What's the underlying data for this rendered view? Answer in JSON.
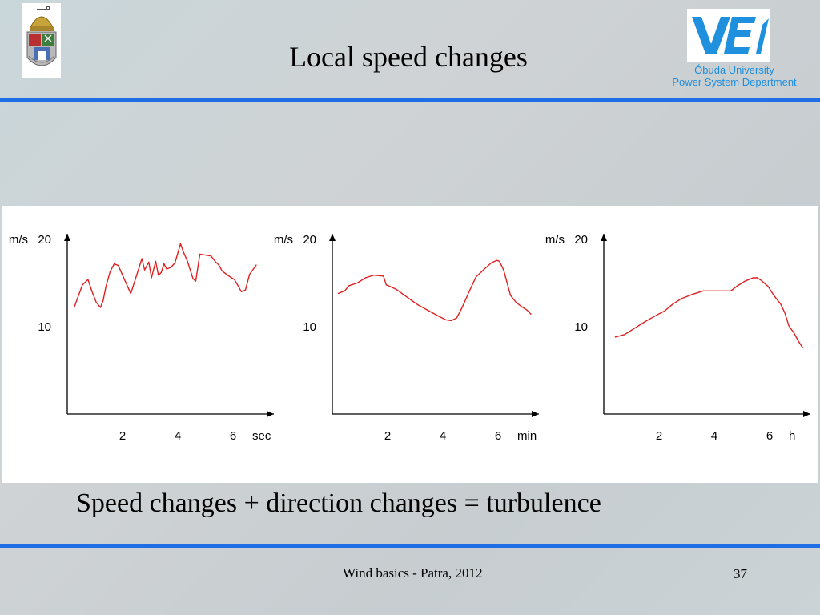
{
  "slide": {
    "title": "Local speed changes",
    "subtitle": "Speed changes + direction changes = turbulence",
    "footer": "Wind basics - Patra, 2012",
    "page_number": "37",
    "department_line1": "Óbuda University",
    "department_line2": "Power System Department",
    "accent_color": "#1f6ee6",
    "logo_left": "university-crest-icon",
    "logo_right": "vei-logo-icon"
  },
  "chart_data": [
    {
      "type": "line",
      "y_unit": "m/s",
      "x_unit": "sec",
      "x_ticks": [
        2,
        4,
        6
      ],
      "y_ticks": [
        10,
        20
      ],
      "xlim": [
        0,
        7.5
      ],
      "ylim": [
        0,
        23
      ],
      "series": [
        {
          "color": "#e02020",
          "x": [
            0.25,
            0.4,
            0.55,
            0.75,
            0.9,
            1.05,
            1.2,
            1.3,
            1.4,
            1.55,
            1.7,
            1.85,
            2.1,
            2.3,
            2.5,
            2.7,
            2.8,
            2.95,
            3.05,
            3.2,
            3.3,
            3.4,
            3.5,
            3.6,
            3.75,
            3.9,
            4.1,
            4.2,
            4.35,
            4.55,
            4.65,
            4.8,
            5.2,
            5.35,
            5.5,
            5.6,
            5.8,
            6.05,
            6.2,
            6.3,
            6.45,
            6.6,
            6.85
          ],
          "y": [
            12.2,
            13.5,
            14.8,
            15.4,
            14.0,
            12.8,
            12.2,
            13.0,
            14.6,
            16.3,
            17.2,
            17.0,
            15.2,
            13.8,
            15.8,
            17.8,
            16.5,
            17.4,
            15.6,
            17.5,
            15.9,
            16.2,
            17.2,
            16.6,
            16.8,
            17.3,
            19.5,
            18.6,
            17.5,
            15.5,
            15.2,
            18.3,
            18.1,
            17.5,
            17.0,
            16.4,
            15.9,
            15.4,
            14.6,
            14.0,
            14.2,
            16.0,
            17.1
          ]
        }
      ]
    },
    {
      "type": "line",
      "y_unit": "m/s",
      "x_unit": "min",
      "x_ticks": [
        2,
        4,
        6
      ],
      "y_ticks": [
        10,
        20
      ],
      "xlim": [
        0,
        7.5
      ],
      "ylim": [
        0,
        23
      ],
      "series": [
        {
          "color": "#e02020",
          "x": [
            0.2,
            0.45,
            0.6,
            0.9,
            1.2,
            1.5,
            1.85,
            1.95,
            2.3,
            2.7,
            3.1,
            3.5,
            3.85,
            4.1,
            4.3,
            4.5,
            4.7,
            4.95,
            5.2,
            5.5,
            5.75,
            5.95,
            6.05,
            6.2,
            6.45,
            6.65,
            6.85,
            7.05,
            7.2
          ],
          "y": [
            13.8,
            14.1,
            14.7,
            15.0,
            15.6,
            15.9,
            15.8,
            14.8,
            14.3,
            13.4,
            12.5,
            11.8,
            11.2,
            10.8,
            10.7,
            11.0,
            12.2,
            14.0,
            15.7,
            16.6,
            17.3,
            17.6,
            17.5,
            16.5,
            13.6,
            12.8,
            12.3,
            11.9,
            11.4
          ]
        }
      ]
    },
    {
      "type": "line",
      "y_unit": "m/s",
      "x_unit": "h",
      "x_ticks": [
        2,
        4,
        6
      ],
      "y_ticks": [
        10,
        20
      ],
      "xlim": [
        0,
        7.5
      ],
      "ylim": [
        0,
        23
      ],
      "series": [
        {
          "color": "#e02020",
          "x": [
            0.4,
            0.75,
            1.1,
            1.5,
            1.9,
            2.2,
            2.5,
            2.8,
            3.2,
            3.6,
            4.0,
            4.4,
            4.6,
            4.8,
            5.1,
            5.4,
            5.55,
            5.7,
            5.95,
            6.15,
            6.4,
            6.55,
            6.7,
            6.9,
            7.05,
            7.2
          ],
          "y": [
            8.8,
            9.1,
            9.8,
            10.6,
            11.3,
            11.8,
            12.6,
            13.2,
            13.7,
            14.1,
            14.1,
            14.1,
            14.1,
            14.6,
            15.2,
            15.6,
            15.6,
            15.3,
            14.6,
            13.6,
            12.6,
            11.6,
            10.1,
            9.2,
            8.3,
            7.6
          ]
        }
      ]
    }
  ]
}
